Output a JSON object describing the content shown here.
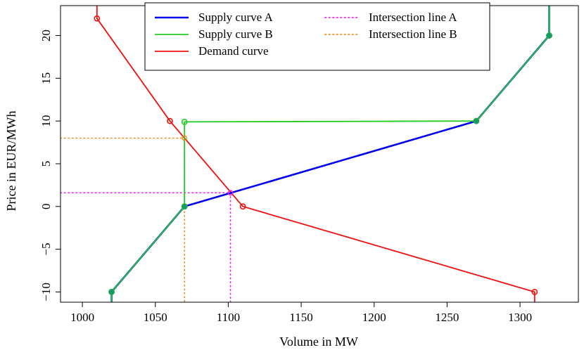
{
  "chart_data": {
    "type": "line",
    "xlabel": "Volume in MW",
    "ylabel": "Price in EUR/MWh",
    "xlim": [
      985,
      1340
    ],
    "ylim": [
      -11.2,
      23.5
    ],
    "x_ticks": [
      1000,
      1050,
      1100,
      1150,
      1200,
      1250,
      1300
    ],
    "y_ticks": [
      -10,
      -5,
      0,
      5,
      10,
      15,
      20
    ],
    "grid": false,
    "legend_position": "top-center",
    "series": [
      {
        "name": "Supply curve A",
        "color": "#0000ee",
        "style": "solid",
        "points": [
          [
            1020,
            -12
          ],
          [
            1020,
            -10
          ],
          [
            1070,
            0
          ],
          [
            1270,
            10
          ],
          [
            1320,
            20
          ],
          [
            1320,
            24
          ]
        ],
        "markers": [
          [
            1020,
            -10
          ],
          [
            1070,
            0
          ],
          [
            1270,
            10
          ],
          [
            1320,
            20
          ]
        ]
      },
      {
        "name": "Supply curve B",
        "color": "#22cc22",
        "style": "solid",
        "points": [
          [
            1020,
            -12
          ],
          [
            1020,
            -10
          ],
          [
            1070,
            0
          ],
          [
            1070,
            9.9
          ],
          [
            1270,
            10
          ],
          [
            1320,
            20
          ],
          [
            1320,
            24
          ]
        ],
        "markers": [
          [
            1020,
            -10
          ],
          [
            1070,
            0
          ],
          [
            1070,
            9.9
          ],
          [
            1270,
            10
          ],
          [
            1320,
            20
          ]
        ]
      },
      {
        "name": "Demand curve",
        "color": "#ee1111",
        "style": "solid",
        "points": [
          [
            1010,
            24
          ],
          [
            1010,
            22
          ],
          [
            1060,
            10
          ],
          [
            1110,
            0
          ],
          [
            1310,
            -10
          ],
          [
            1310,
            -12
          ]
        ],
        "markers": [
          [
            1010,
            22
          ],
          [
            1060,
            10
          ],
          [
            1110,
            0
          ],
          [
            1310,
            -10
          ]
        ]
      },
      {
        "name": "Intersection line A",
        "color": "#ee22ee",
        "style": "dotted",
        "intersection": [
          1101.5,
          1.6
        ]
      },
      {
        "name": "Intersection line B",
        "color": "#f08c1e",
        "style": "dotted",
        "intersection": [
          1070,
          8
        ]
      }
    ]
  }
}
